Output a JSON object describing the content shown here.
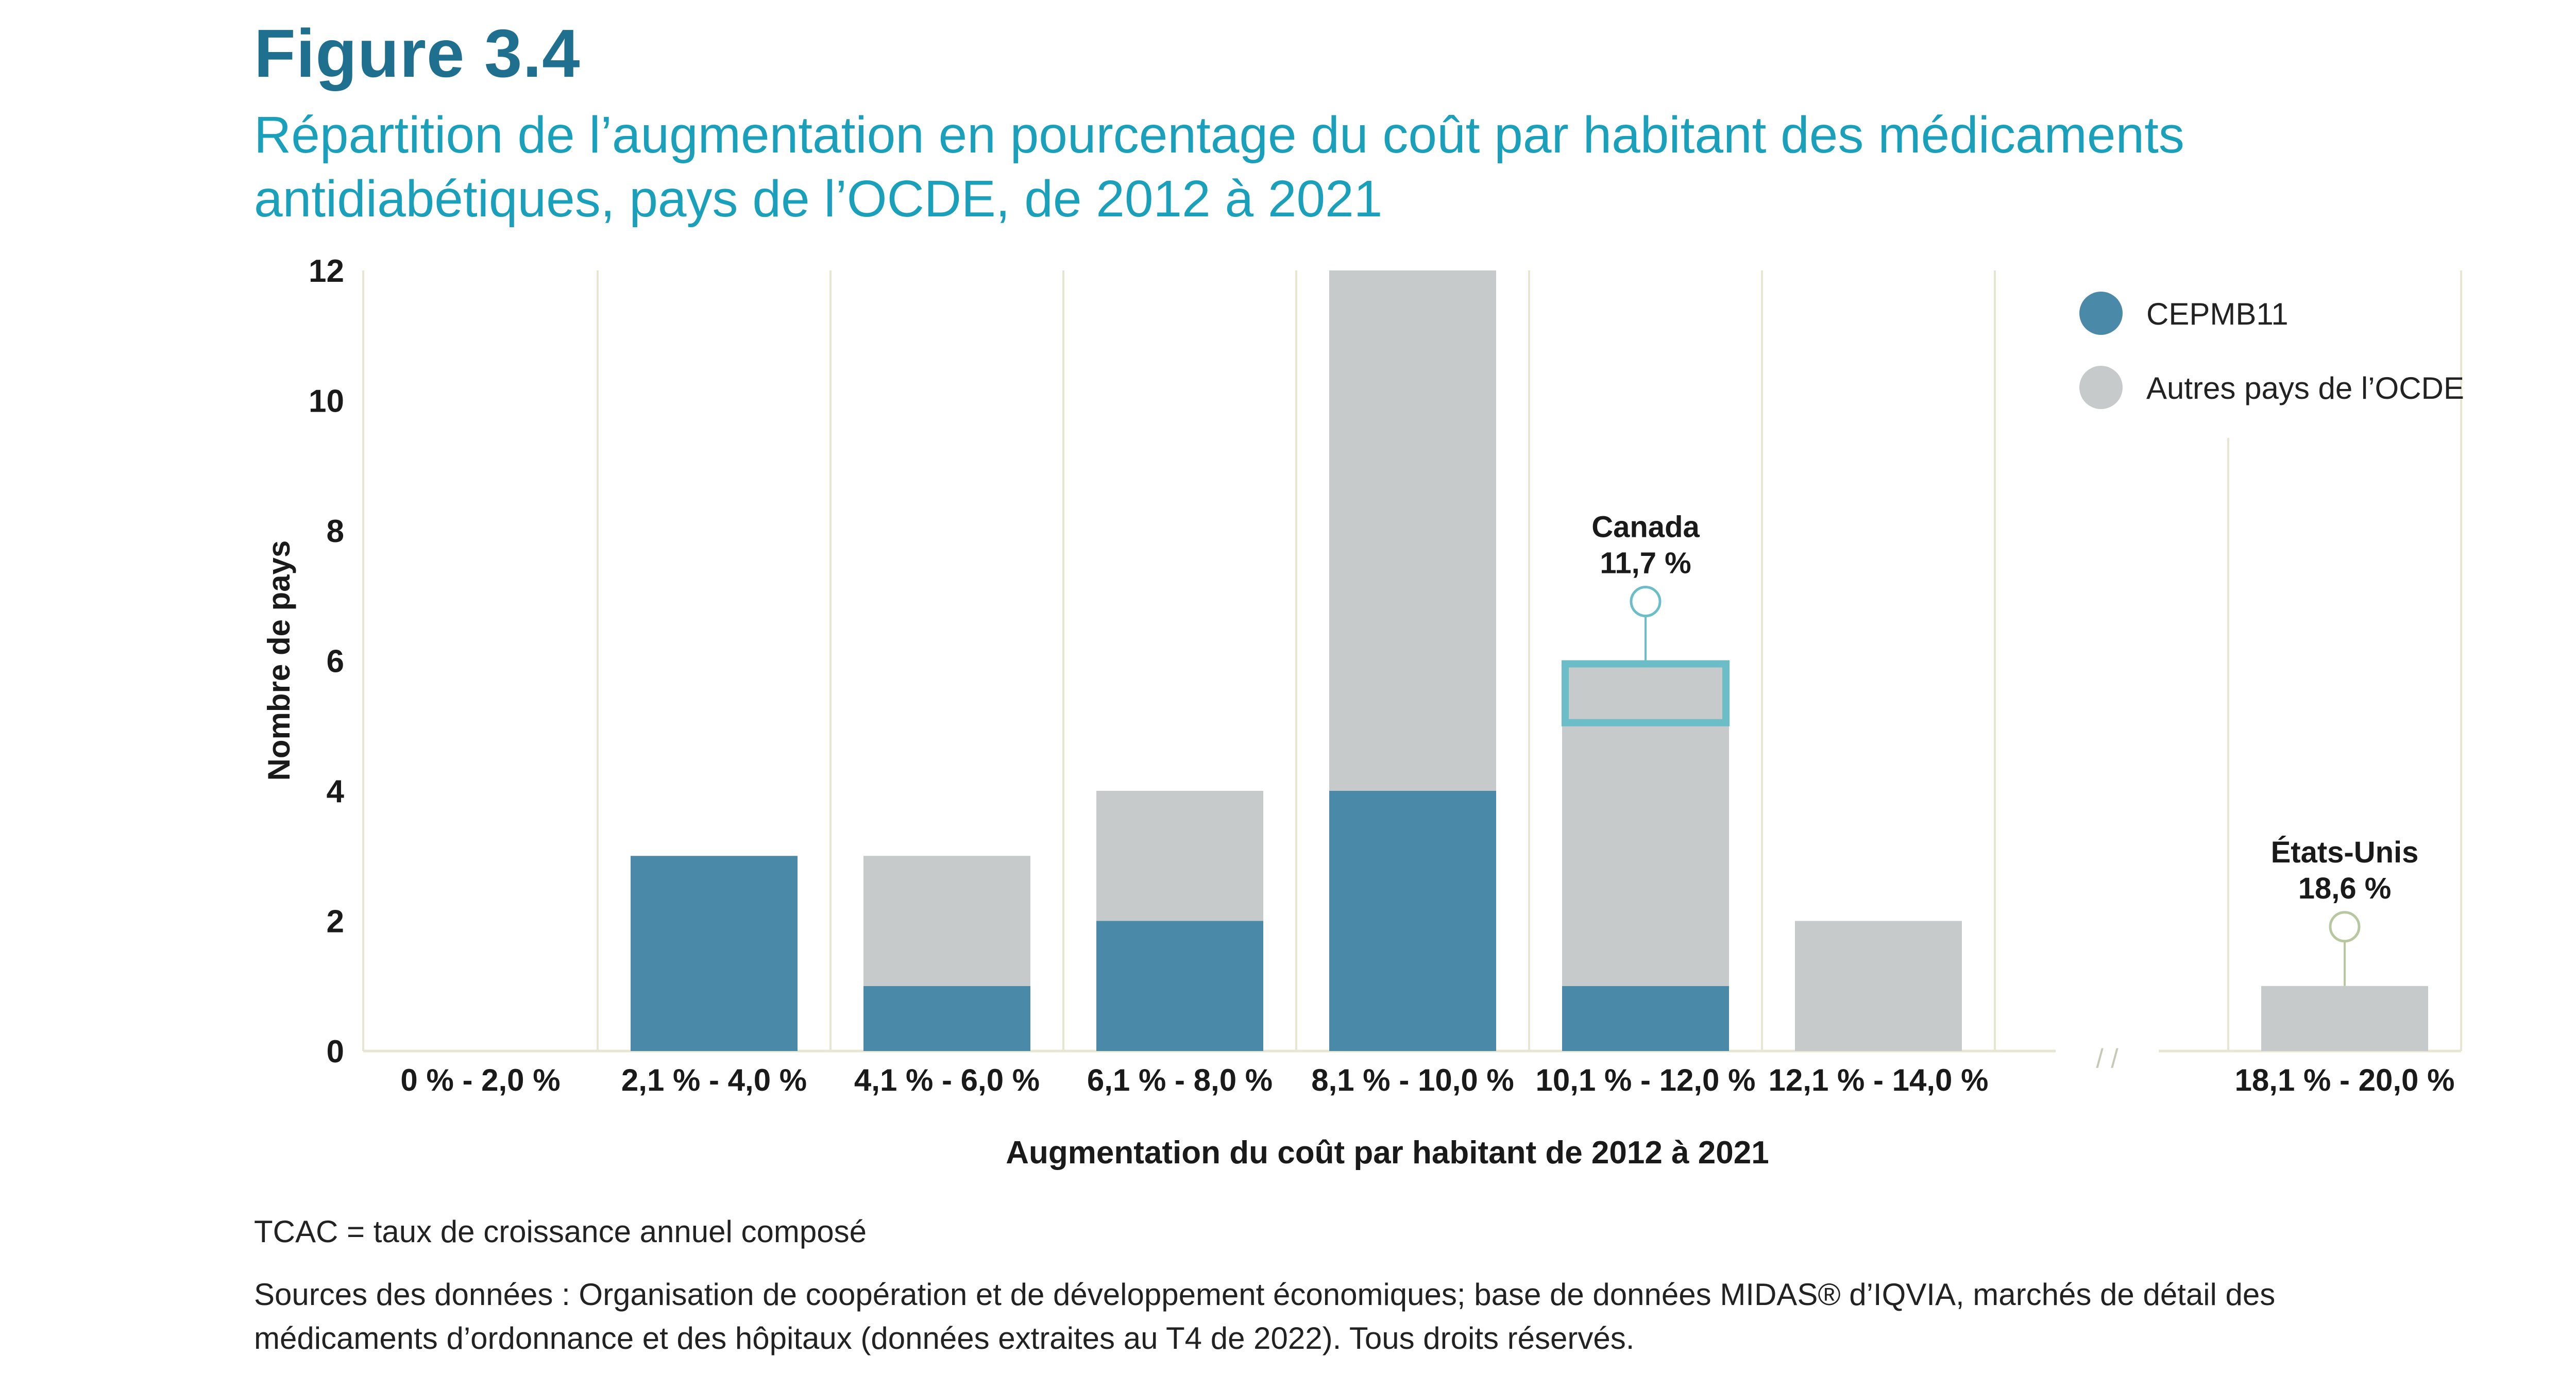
{
  "figure_label": "Figure 3.4",
  "title": "Répartition de l’augmentation en pourcentage du coût par habitant des médicaments antidiabétiques, pays de l’OCDE, de 2012 à 2021",
  "chart_data": {
    "type": "bar",
    "stacked": true,
    "title": "Répartition de l’augmentation en pourcentage du coût par habitant des médicaments antidiabétiques, pays de l’OCDE, de 2012 à 2021",
    "xlabel": "Augmentation du coût par habitant de 2012 à 2021",
    "ylabel": "Nombre de pays",
    "ylim": [
      0,
      12
    ],
    "yticks": [
      0,
      2,
      4,
      6,
      8,
      10,
      12
    ],
    "categories": [
      "0 % - 2,0 %",
      "2,1 % - 4,0 %",
      "4,1 % - 6,0 %",
      "6,1 % - 8,0 %",
      "8,1 % - 10,0 %",
      "10,1 % - 12,0 %",
      "12,1 % - 14,0 %",
      "18,1 % - 20,0 %"
    ],
    "axis_break_after": "12,1 % - 14,0 %",
    "axis_break_symbol": "/ /",
    "series": [
      {
        "name": "CEPMB11",
        "color": "#4a8aa8",
        "values": [
          0,
          3,
          1,
          2,
          4,
          1,
          0,
          0
        ]
      },
      {
        "name": "Autres pays de l’OCDE",
        "color": "#c6cacb",
        "values": [
          0,
          0,
          2,
          2,
          8,
          5,
          2,
          1
        ]
      }
    ],
    "legend": {
      "placement": "top-right",
      "items": [
        "CEPMB11",
        "Autres pays de l’OCDE"
      ]
    },
    "annotations": [
      {
        "category": "10,1 % - 12,0 %",
        "label": "Canada",
        "value_label": "11,7 %",
        "highlight_value_range": [
          5,
          6
        ],
        "highlight_color": "#6bbdc7"
      },
      {
        "category": "18,1 % - 20,0 %",
        "label": "États-Unis",
        "value_label": "18,6 %",
        "highlight_value_range": [
          0,
          1
        ]
      }
    ]
  },
  "notes": {
    "tcac": "TCAC = taux de croissance annuel composé",
    "sources": "Sources des données : Organisation de coopération et de développement économiques; base de données MIDAS® d’IQVIA, marchés de détail des médicaments d’ordonnance et des hôpitaux (données extraites au T4 de 2022). Tous droits réservés."
  }
}
